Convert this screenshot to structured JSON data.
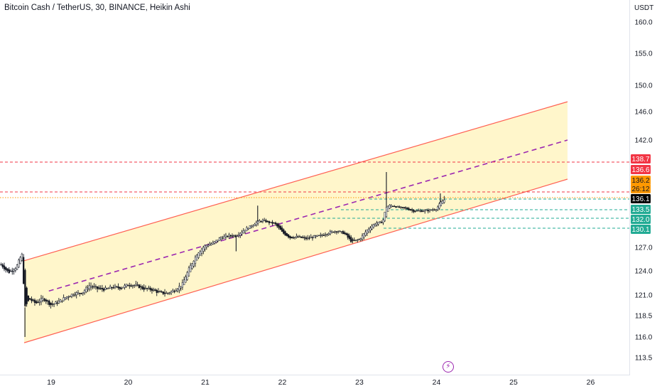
{
  "chart_data": {
    "type": "candlestick",
    "title": "Bitcoin Cash / TetherUS, 30, BINANCE, Heikin Ashi",
    "currency": "USDT",
    "y_ticks": [
      "160.0",
      "155.0",
      "150.0",
      "146.0",
      "142.0",
      "127.0",
      "124.0",
      "121.0",
      "118.5",
      "116.0",
      "113.5"
    ],
    "x_ticks": [
      "19",
      "20",
      "21",
      "22",
      "23",
      "24",
      "25",
      "26"
    ],
    "x_range_days": [
      18.35,
      26.4
    ],
    "channel": {
      "upper": [
        [
          18.65,
          125.3
        ],
        [
          25.7,
          147.5
        ]
      ],
      "lower": [
        [
          18.65,
          115.3
        ],
        [
          25.7,
          137.5
        ]
      ],
      "mid": [
        [
          18.97,
          121.5
        ],
        [
          25.7,
          142.0
        ]
      ]
    },
    "horizontal_lines": [
      {
        "price": 138.7,
        "color": "#f23645",
        "style": "dashed"
      },
      {
        "price": 136.6,
        "color": "#f23645",
        "style": "dashed"
      },
      {
        "price": 136.2,
        "color": "#ff9800",
        "style": "dotted"
      },
      {
        "price": 136.1,
        "color": "#22ab94",
        "style": "dashed"
      },
      {
        "price": 133.5,
        "color": "#22ab94",
        "style": "dashed"
      },
      {
        "price": 132.0,
        "color": "#22ab94",
        "style": "dashed"
      },
      {
        "price": 130.1,
        "color": "#22ab94",
        "style": "dashed"
      }
    ],
    "price_labels": [
      {
        "text": "138.7",
        "bg": "#f23645",
        "fg": "#ffffff"
      },
      {
        "text": "136.6",
        "bg": "#f23645",
        "fg": "#ffffff"
      },
      {
        "text": "136.2",
        "bg": "#ff9800",
        "fg": "#131722"
      },
      {
        "text": "26:12",
        "bg": "#ff9800",
        "fg": "#131722"
      },
      {
        "text": "136.1",
        "bg": "#000000",
        "fg": "#ffffff"
      },
      {
        "text": "133.5",
        "bg": "#22ab94",
        "fg": "#ffffff"
      },
      {
        "text": "132.0",
        "bg": "#22ab94",
        "fg": "#ffffff"
      },
      {
        "text": "130.1",
        "bg": "#22ab94",
        "fg": "#ffffff"
      }
    ],
    "price_path": [
      [
        18.35,
        124.8
      ],
      [
        18.45,
        123.8
      ],
      [
        18.55,
        124.5
      ],
      [
        18.62,
        126.2
      ],
      [
        18.66,
        119.5
      ],
      [
        18.72,
        120.5
      ],
      [
        18.8,
        120.0
      ],
      [
        18.9,
        120.6
      ],
      [
        19.0,
        119.8
      ],
      [
        19.1,
        120.2
      ],
      [
        19.2,
        120.8
      ],
      [
        19.3,
        121.2
      ],
      [
        19.4,
        121.3
      ],
      [
        19.5,
        122.2
      ],
      [
        19.6,
        121.8
      ],
      [
        19.7,
        121.7
      ],
      [
        19.8,
        122.0
      ],
      [
        19.9,
        121.9
      ],
      [
        20.0,
        122.3
      ],
      [
        20.1,
        122.2
      ],
      [
        20.2,
        121.8
      ],
      [
        20.3,
        121.7
      ],
      [
        20.4,
        121.3
      ],
      [
        20.5,
        121.2
      ],
      [
        20.6,
        121.6
      ],
      [
        20.7,
        122.3
      ],
      [
        20.8,
        124.5
      ],
      [
        20.9,
        126.3
      ],
      [
        21.0,
        127.3
      ],
      [
        21.1,
        127.7
      ],
      [
        21.2,
        128.6
      ],
      [
        21.3,
        128.9
      ],
      [
        21.4,
        128.9
      ],
      [
        21.5,
        129.8
      ],
      [
        21.6,
        130.6
      ],
      [
        21.68,
        131.4
      ],
      [
        21.75,
        131.6
      ],
      [
        21.82,
        131.2
      ],
      [
        21.9,
        131.0
      ],
      [
        22.0,
        129.4
      ],
      [
        22.1,
        128.6
      ],
      [
        22.2,
        128.7
      ],
      [
        22.3,
        128.4
      ],
      [
        22.4,
        128.7
      ],
      [
        22.5,
        128.9
      ],
      [
        22.6,
        129.4
      ],
      [
        22.7,
        129.7
      ],
      [
        22.8,
        129.3
      ],
      [
        22.9,
        127.9
      ],
      [
        23.0,
        128.3
      ],
      [
        23.1,
        129.8
      ],
      [
        23.2,
        131.0
      ],
      [
        23.3,
        131.3
      ],
      [
        23.35,
        134.2
      ],
      [
        23.4,
        134.6
      ],
      [
        23.5,
        134.1
      ],
      [
        23.6,
        133.8
      ],
      [
        23.7,
        133.3
      ],
      [
        23.8,
        133.3
      ],
      [
        23.9,
        133.4
      ],
      [
        24.0,
        133.7
      ],
      [
        24.05,
        135.2
      ],
      [
        24.12,
        136.2
      ]
    ],
    "spikes": [
      {
        "day": 18.66,
        "high": 119.5,
        "low": 116.0
      },
      {
        "day": 21.68,
        "high": 134.5,
        "low": 131.4
      },
      {
        "day": 21.4,
        "high": 128.9,
        "low": 126.5
      },
      {
        "day": 23.35,
        "high": 138.0,
        "low": 134.2
      },
      {
        "day": 24.05,
        "high": 136.5,
        "low": 135.2
      }
    ]
  }
}
